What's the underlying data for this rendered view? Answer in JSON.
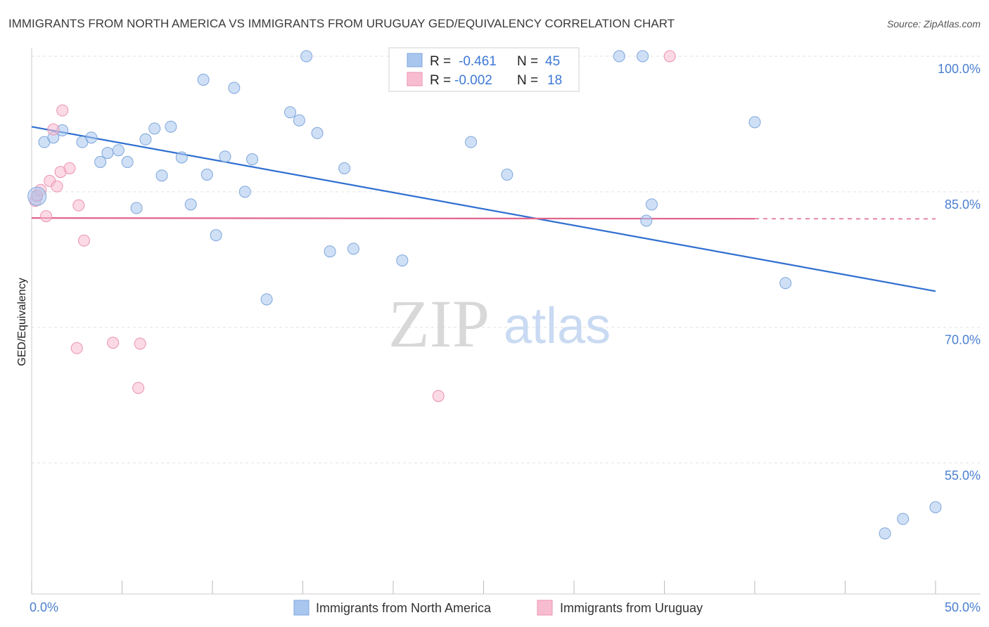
{
  "chart_data": {
    "type": "scatter",
    "title": "IMMIGRANTS FROM NORTH AMERICA VS IMMIGRANTS FROM URUGUAY GED/EQUIVALENCY CORRELATION CHART",
    "source": "Source: ZipAtlas.com",
    "ylabel": "GED/Equivalency",
    "xlim": [
      0,
      50
    ],
    "ylim": [
      40.5,
      101.5
    ],
    "x_tick_labels": [
      "0.0%",
      "50.0%"
    ],
    "y_ticks": [
      100,
      85,
      70,
      55
    ],
    "y_tick_labels": [
      "100.0%",
      "85.0%",
      "70.0%",
      "55.0%"
    ],
    "grid": true,
    "legend_position": "bottom",
    "watermark": {
      "zip": "ZIP",
      "atlas": "atlas"
    },
    "stats": {
      "r_label": "R =",
      "n_label": "N =",
      "rows": [
        {
          "r": "-0.461",
          "n": "45"
        },
        {
          "r": "-0.002",
          "n": "18"
        }
      ]
    },
    "series": [
      {
        "name": "Immigrants from North America",
        "color": "#a8c6ee",
        "stroke": "#7ea6dc",
        "trend_color": "#2f6fd0",
        "trend": {
          "x0": 0,
          "y0": 92.2,
          "x1": 50,
          "y1": 74.0,
          "dashed_from": null
        },
        "points": [
          [
            0.3,
            84.5
          ],
          [
            0.7,
            90.5
          ],
          [
            1.2,
            91.0
          ],
          [
            1.7,
            91.8
          ],
          [
            2.8,
            90.5
          ],
          [
            3.3,
            91.0
          ],
          [
            3.8,
            88.3
          ],
          [
            4.2,
            89.3
          ],
          [
            4.8,
            89.6
          ],
          [
            5.3,
            88.3
          ],
          [
            5.8,
            83.2
          ],
          [
            6.3,
            90.8
          ],
          [
            6.8,
            92.0
          ],
          [
            7.2,
            86.8
          ],
          [
            7.7,
            92.2
          ],
          [
            8.3,
            88.8
          ],
          [
            8.8,
            83.6
          ],
          [
            9.5,
            97.4
          ],
          [
            9.7,
            86.9
          ],
          [
            10.2,
            80.2
          ],
          [
            10.7,
            88.9
          ],
          [
            11.2,
            96.5
          ],
          [
            11.8,
            85.0
          ],
          [
            12.2,
            88.6
          ],
          [
            13.0,
            73.1
          ],
          [
            14.3,
            93.8
          ],
          [
            14.8,
            92.9
          ],
          [
            15.2,
            100.0
          ],
          [
            15.8,
            91.5
          ],
          [
            16.5,
            78.4
          ],
          [
            17.3,
            87.6
          ],
          [
            17.8,
            78.7
          ],
          [
            20.5,
            77.4
          ],
          [
            24.3,
            90.5
          ],
          [
            26.3,
            86.9
          ],
          [
            28.0,
            100.0
          ],
          [
            32.5,
            100.0
          ],
          [
            33.8,
            100.0
          ],
          [
            34.0,
            81.8
          ],
          [
            34.3,
            83.6
          ],
          [
            40.0,
            92.7
          ],
          [
            41.7,
            74.9
          ],
          [
            47.2,
            47.2
          ],
          [
            48.2,
            48.8
          ],
          [
            50.0,
            50.1
          ]
        ]
      },
      {
        "name": "Immigrants from Uruguay",
        "color": "#f7bcd0",
        "stroke": "#eb92b0",
        "trend_color": "#e0648c",
        "trend": {
          "x0": 0,
          "y0": 82.1,
          "x1": 50,
          "y1": 82.0,
          "dashed_from": 40.0
        },
        "points": [
          [
            0.2,
            84.0
          ],
          [
            0.3,
            84.6
          ],
          [
            0.5,
            85.2
          ],
          [
            0.8,
            82.3
          ],
          [
            1.0,
            86.2
          ],
          [
            1.2,
            91.9
          ],
          [
            1.4,
            85.6
          ],
          [
            1.6,
            87.2
          ],
          [
            1.7,
            94.0
          ],
          [
            2.1,
            87.6
          ],
          [
            2.5,
            67.7
          ],
          [
            2.6,
            83.5
          ],
          [
            2.9,
            79.6
          ],
          [
            4.5,
            68.3
          ],
          [
            5.9,
            63.3
          ],
          [
            6.0,
            68.2
          ],
          [
            22.5,
            62.4
          ],
          [
            35.3,
            100.0
          ]
        ]
      }
    ]
  }
}
